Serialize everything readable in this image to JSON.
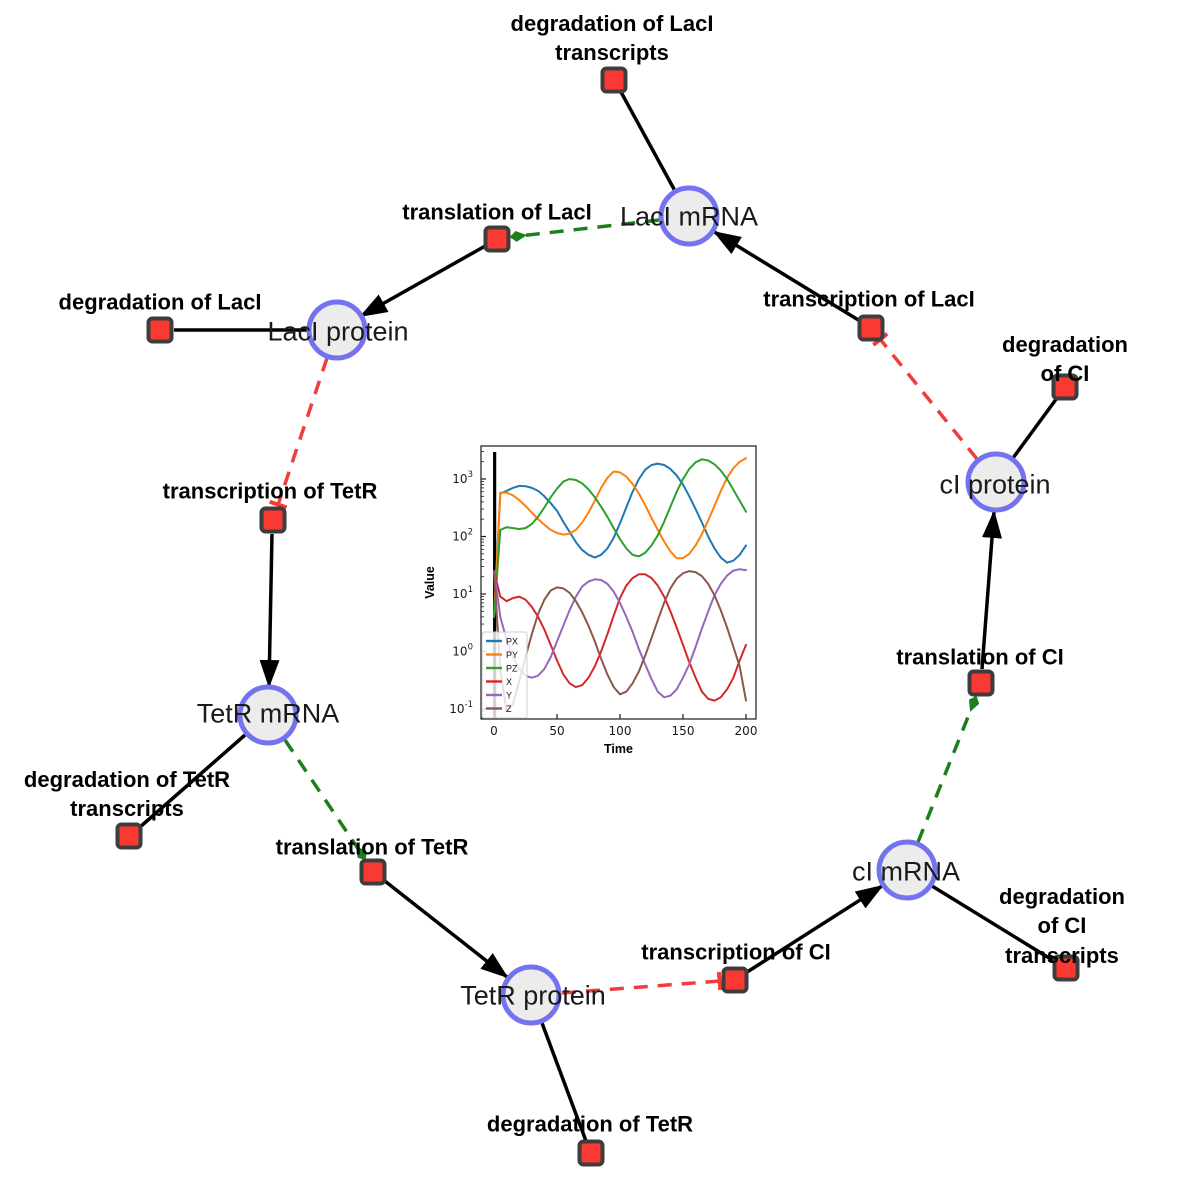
{
  "diagram": {
    "species_nodes": [
      {
        "id": "laci-mrna",
        "label": "LacI mRNA"
      },
      {
        "id": "laci-protein",
        "label": "LacI protein"
      },
      {
        "id": "tetr-mrna",
        "label": "TetR mRNA"
      },
      {
        "id": "tetr-protein",
        "label": "TetR protein"
      },
      {
        "id": "ci-mrna",
        "label": "cI mRNA"
      },
      {
        "id": "ci-protein",
        "label": "cI protein"
      }
    ],
    "reaction_nodes": [
      {
        "id": "deg-laci-transcripts",
        "label": "degradation of LacI\ntranscripts"
      },
      {
        "id": "translation-laci",
        "label": "translation of LacI"
      },
      {
        "id": "deg-laci",
        "label": "degradation of LacI"
      },
      {
        "id": "transcription-laci",
        "label": "transcription of LacI"
      },
      {
        "id": "deg-ci",
        "label": "degradation of CI"
      },
      {
        "id": "transcription-tetr",
        "label": "transcription of TetR"
      },
      {
        "id": "deg-tetr-transcripts",
        "label": "degradation of TetR\ntranscripts"
      },
      {
        "id": "translation-tetr",
        "label": "translation of TetR"
      },
      {
        "id": "deg-tetr",
        "label": "degradation of TetR"
      },
      {
        "id": "transcription-ci",
        "label": "transcription of CI"
      },
      {
        "id": "deg-ci-transcripts",
        "label": "degradation of CI\ntranscripts"
      },
      {
        "id": "translation-ci",
        "label": "translation of CI"
      }
    ],
    "edge_types": {
      "production": "solid black arrow",
      "consumption": "solid black line",
      "modifier": "dashed green arrow",
      "inhibition": "dashed red T-bar"
    },
    "colors": {
      "species_fill": "#ececec",
      "species_border": "#7373f0",
      "reaction_fill": "#fa3a32",
      "reaction_border": "#3d3d3d",
      "production_edge": "#000000",
      "modifier_edge": "#1b7f1b",
      "inhibition_edge": "#f43b3b"
    }
  },
  "chart_data": {
    "type": "line",
    "title": "",
    "xlabel": "Time",
    "ylabel": "Value",
    "x_ticks": [
      0,
      50,
      100,
      150,
      200
    ],
    "xlim": [
      -10,
      208
    ],
    "y_scale": "log",
    "y_tick_exponents": [
      -1,
      0,
      1,
      2,
      3
    ],
    "ylim_log10": [
      -1.17,
      3.57
    ],
    "grid": false,
    "legend_position": "lower left",
    "vline_x": 0.5,
    "x": [
      0,
      5,
      10,
      15,
      20,
      25,
      30,
      35,
      40,
      45,
      50,
      55,
      60,
      65,
      70,
      75,
      80,
      85,
      90,
      95,
      100,
      105,
      110,
      115,
      120,
      125,
      130,
      135,
      140,
      145,
      150,
      155,
      160,
      165,
      170,
      175,
      180,
      185,
      190,
      195,
      200
    ],
    "series": [
      {
        "name": "PX",
        "color": "#1f77b4",
        "values": [
          4,
          560,
          620,
          700,
          760,
          750,
          700,
          620,
          500,
          380,
          280,
          180,
          120,
          80,
          58,
          48,
          43,
          48,
          62,
          95,
          170,
          320,
          600,
          1000,
          1450,
          1750,
          1850,
          1750,
          1500,
          1150,
          800,
          500,
          300,
          175,
          100,
          62,
          43,
          35,
          38,
          48,
          70
        ]
      },
      {
        "name": "PY",
        "color": "#ff7f0e",
        "values": [
          4,
          580,
          580,
          520,
          430,
          340,
          260,
          200,
          160,
          130,
          115,
          108,
          112,
          130,
          175,
          260,
          420,
          700,
          1050,
          1350,
          1300,
          1100,
          820,
          560,
          350,
          210,
          130,
          82,
          55,
          42,
          42,
          50,
          70,
          110,
          190,
          340,
          620,
          1050,
          1550,
          2000,
          2300
        ]
      },
      {
        "name": "PZ",
        "color": "#2ca02c",
        "values": [
          4,
          130,
          145,
          140,
          135,
          140,
          165,
          220,
          320,
          480,
          680,
          900,
          1000,
          960,
          840,
          660,
          480,
          330,
          220,
          140,
          90,
          62,
          48,
          45,
          52,
          70,
          105,
          180,
          330,
          600,
          1000,
          1500,
          1950,
          2200,
          2100,
          1800,
          1400,
          1000,
          650,
          420,
          270
        ]
      },
      {
        "name": "X",
        "color": "#d62728",
        "values": [
          25,
          9,
          7.5,
          8.5,
          9,
          8,
          6,
          4,
          2.4,
          1.3,
          0.7,
          0.4,
          0.28,
          0.24,
          0.26,
          0.35,
          0.55,
          1.0,
          2.0,
          4.2,
          8.5,
          14,
          19,
          22,
          22,
          19,
          14,
          9,
          5,
          2.6,
          1.3,
          0.65,
          0.35,
          0.2,
          0.15,
          0.14,
          0.16,
          0.22,
          0.35,
          0.7,
          1.3
        ]
      },
      {
        "name": "Y",
        "color": "#9467bd",
        "values": [
          25,
          4,
          1.6,
          0.8,
          0.5,
          0.38,
          0.35,
          0.38,
          0.5,
          0.8,
          1.5,
          2.8,
          5.2,
          9,
          13.5,
          16.5,
          18,
          17.5,
          15,
          11,
          7,
          4,
          2.2,
          1.1,
          0.6,
          0.33,
          0.2,
          0.16,
          0.17,
          0.22,
          0.35,
          0.6,
          1.2,
          2.5,
          5,
          9.5,
          15,
          21,
          25.5,
          27,
          26
        ]
      },
      {
        "name": "Z",
        "color": "#8c564b",
        "values": [
          25,
          0.5,
          0.09,
          0.12,
          0.3,
          0.8,
          2,
          4.5,
          8,
          11.5,
          13,
          12.5,
          10.5,
          7.5,
          4.8,
          2.8,
          1.5,
          0.75,
          0.4,
          0.24,
          0.18,
          0.2,
          0.28,
          0.45,
          0.85,
          1.7,
          3.5,
          7,
          12.5,
          18.5,
          23,
          25,
          24,
          20.5,
          15,
          9.5,
          5.2,
          2.6,
          1.2,
          0.55,
          0.14
        ]
      }
    ]
  }
}
